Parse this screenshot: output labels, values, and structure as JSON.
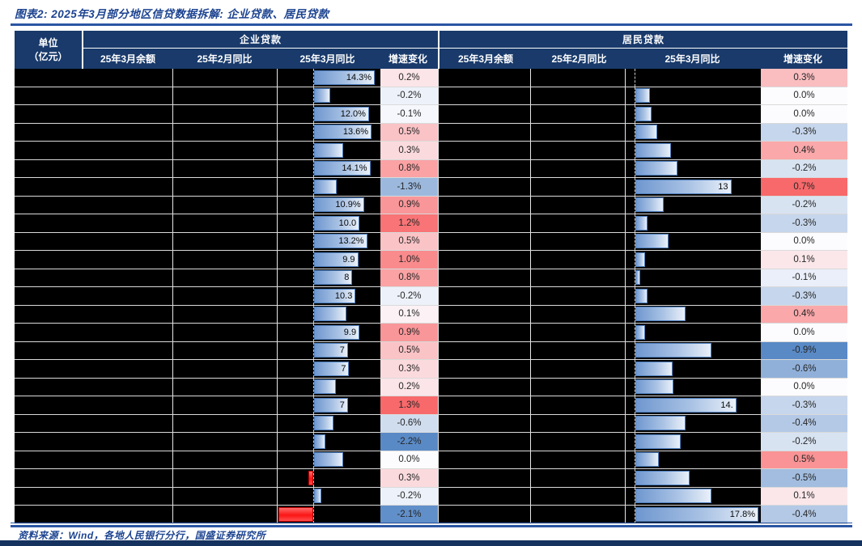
{
  "title": "图表2: 2025年3月部分地区信贷数据拆解: 企业贷款、居民贷款",
  "header": {
    "unit_line1": "单位",
    "unit_line2": "（亿元）",
    "groups": [
      {
        "label": "企业贷款",
        "cols": [
          "25年3月余额",
          "25年2月同比",
          "25年3月同比",
          "增速变化"
        ]
      },
      {
        "label": "居民贷款",
        "cols": [
          "25年3月余额",
          "25年2月同比",
          "25年3月同比",
          "增速变化"
        ]
      }
    ]
  },
  "footer": {
    "source": "资料来源：Wind，各地人民银行分行，国盛证券研究所"
  },
  "colors": {
    "header_bg": "#193a6b",
    "title_text": "#1c4390",
    "rule": "#2a56a3",
    "bottom_bar": "#15325f",
    "cell_bg": "#000000",
    "grid_line": "#dadada",
    "bar_blue_border": "#4e7fbe",
    "bar_red_border": "#c00000",
    "scale_pos": "#F8696B",
    "scale_mid": "#FCFCFF",
    "scale_neg": "#5A8AC6"
  },
  "chart_data": {
    "type": "table",
    "description": "Regional credit data table; region names and balance/Feb-YoY cells are blacked out. Blue/red data bars depict 25年3月同比 (March-25 YoY %); 增速变化 cells are color-scaled (red positive / blue negative).",
    "delta_scales": {
      "enterprise": {
        "min": -2.2,
        "max": 1.3
      },
      "resident": {
        "min": -0.9,
        "max": 0.7
      }
    },
    "rows": [
      {
        "ent": {
          "label": "14.3%",
          "bar_pct": 95,
          "delta": 0.2
        },
        "res": {
          "label": "",
          "bar_pct": 0,
          "delta": 0.3
        }
      },
      {
        "ent": {
          "label": "",
          "bar_pct": 25,
          "delta": -0.2
        },
        "res": {
          "label": "",
          "bar_pct": 12,
          "delta": 0.0
        }
      },
      {
        "ent": {
          "label": "12.0%",
          "bar_pct": 86,
          "delta": -0.1
        },
        "res": {
          "label": "",
          "bar_pct": 13,
          "delta": 0.0
        }
      },
      {
        "ent": {
          "label": "13.6%",
          "bar_pct": 90,
          "delta": 0.5
        },
        "res": {
          "label": "",
          "bar_pct": 18,
          "delta": -0.3
        }
      },
      {
        "ent": {
          "label": "",
          "bar_pct": 46,
          "delta": 0.3
        },
        "res": {
          "label": "",
          "bar_pct": 29,
          "delta": 0.4
        }
      },
      {
        "ent": {
          "label": "14.1%",
          "bar_pct": 88,
          "delta": 0.8
        },
        "res": {
          "label": "",
          "bar_pct": 34,
          "delta": -0.2
        }
      },
      {
        "ent": {
          "label": "",
          "bar_pct": 36,
          "delta": -1.3
        },
        "res": {
          "label": "13",
          "bar_pct": 78,
          "delta": 0.7
        }
      },
      {
        "ent": {
          "label": "10.9%",
          "bar_pct": 78,
          "delta": 0.9
        },
        "res": {
          "label": "",
          "bar_pct": 23,
          "delta": -0.2
        }
      },
      {
        "ent": {
          "label": "10.0",
          "bar_pct": 71,
          "delta": 1.2
        },
        "res": {
          "label": "",
          "bar_pct": 10,
          "delta": -0.3
        }
      },
      {
        "ent": {
          "label": "13.2%",
          "bar_pct": 83,
          "delta": 0.5
        },
        "res": {
          "label": "",
          "bar_pct": 27,
          "delta": 0.0
        }
      },
      {
        "ent": {
          "label": "9.9",
          "bar_pct": 69,
          "delta": 1.0
        },
        "res": {
          "label": "",
          "bar_pct": 8,
          "delta": 0.1
        }
      },
      {
        "ent": {
          "label": "8",
          "bar_pct": 60,
          "delta": 0.8
        },
        "res": {
          "label": "",
          "bar_pct": 4,
          "delta": -0.1
        }
      },
      {
        "ent": {
          "label": "10.3",
          "bar_pct": 65,
          "delta": -0.2
        },
        "res": {
          "label": "",
          "bar_pct": 10,
          "delta": -0.3
        }
      },
      {
        "ent": {
          "label": "",
          "bar_pct": 50,
          "delta": 0.1
        },
        "res": {
          "label": "",
          "bar_pct": 41,
          "delta": 0.4
        }
      },
      {
        "ent": {
          "label": "9.9",
          "bar_pct": 71,
          "delta": 0.9
        },
        "res": {
          "label": "",
          "bar_pct": 8,
          "delta": 0.0
        }
      },
      {
        "ent": {
          "label": "7",
          "bar_pct": 53,
          "delta": 0.5
        },
        "res": {
          "label": "",
          "bar_pct": 62,
          "delta": -0.9
        }
      },
      {
        "ent": {
          "label": "7",
          "bar_pct": 55,
          "delta": 0.3
        },
        "res": {
          "label": "",
          "bar_pct": 30,
          "delta": -0.6
        }
      },
      {
        "ent": {
          "label": "",
          "bar_pct": 34,
          "delta": 0.2
        },
        "res": {
          "label": "",
          "bar_pct": 31,
          "delta": 0.0
        }
      },
      {
        "ent": {
          "label": "7",
          "bar_pct": 53,
          "delta": 1.3
        },
        "res": {
          "label": "14.",
          "bar_pct": 82,
          "delta": -0.3
        }
      },
      {
        "ent": {
          "label": "",
          "bar_pct": 30,
          "delta": -0.6
        },
        "res": {
          "label": "",
          "bar_pct": 41,
          "delta": -0.4
        }
      },
      {
        "ent": {
          "label": "",
          "bar_pct": 18,
          "delta": -2.2
        },
        "res": {
          "label": "",
          "bar_pct": 37,
          "delta": -0.2
        }
      },
      {
        "ent": {
          "label": "",
          "bar_pct": 46,
          "delta": 0.0
        },
        "res": {
          "label": "",
          "bar_pct": 19,
          "delta": 0.5
        }
      },
      {
        "ent": {
          "label": "",
          "bar_pct": -14,
          "delta": 0.3
        },
        "res": {
          "label": "",
          "bar_pct": 44,
          "delta": -0.5
        }
      },
      {
        "ent": {
          "label": "",
          "bar_pct": 11,
          "delta": -0.2
        },
        "res": {
          "label": "",
          "bar_pct": 62,
          "delta": 0.1
        }
      },
      {
        "ent": {
          "label": "",
          "bar_pct": -98,
          "delta": -2.1
        },
        "res": {
          "label": "17.8%",
          "bar_pct": 100,
          "delta": -0.4
        }
      }
    ]
  }
}
